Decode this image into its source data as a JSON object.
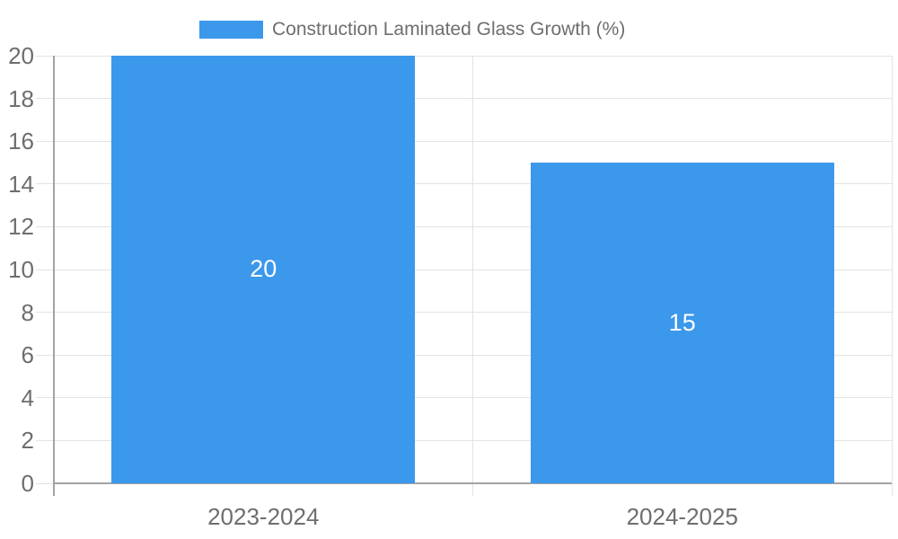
{
  "legend": {
    "label": "Construction Laminated Glass Growth (%)"
  },
  "chart_data": {
    "type": "bar",
    "title": "Construction Laminated Glass Growth (%)",
    "categories": [
      "2023-2024",
      "2024-2025"
    ],
    "values": [
      20,
      15
    ],
    "value_labels": [
      "20",
      "15"
    ],
    "xlabel": "",
    "ylabel": "",
    "ylim": [
      0,
      20
    ],
    "ytick_step": 2,
    "yticks": [
      0,
      2,
      4,
      6,
      8,
      10,
      12,
      14,
      16,
      18,
      20
    ],
    "grid": true,
    "legend_position": "top-center"
  },
  "colors": {
    "bar": "#3b98eb",
    "bar_value_text": "#ffffff",
    "grid_line": "#e3e3e3",
    "axis_line": "#a3a3a3",
    "tick_text": "#6e6e6e",
    "legend_text": "#6e6e6e",
    "background": "#ffffff"
  }
}
